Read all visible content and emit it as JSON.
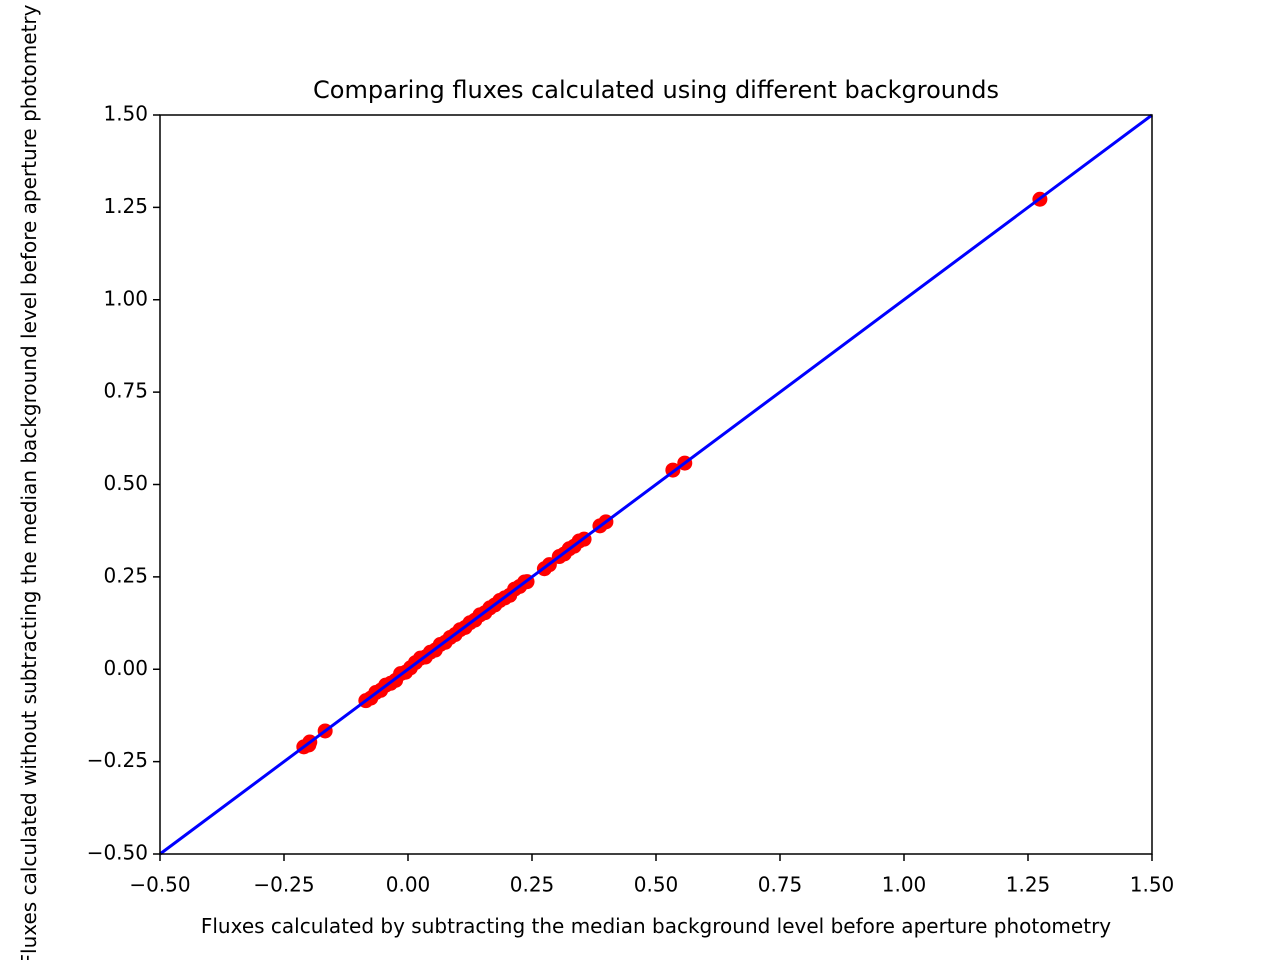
{
  "chart_data": {
    "type": "scatter",
    "title": "Comparing fluxes calculated using different backgrounds",
    "xlabel": "Fluxes calculated by subtracting the median background level before aperture photometry",
    "ylabel": "Fluxes calculated without subtracting the median background level before aperture photometry",
    "xlim": [
      -0.5,
      1.5
    ],
    "ylim": [
      -0.5,
      1.5
    ],
    "xticks": [
      {
        "value": -0.5,
        "label": "−0.50"
      },
      {
        "value": -0.25,
        "label": "−0.25"
      },
      {
        "value": 0,
        "label": "0.00"
      },
      0.25,
      {
        "value": 0.5,
        "label": "0.50"
      },
      0.75,
      {
        "value": 1,
        "label": "1.00"
      },
      1.25,
      {
        "value": 1.5,
        "label": "1.50"
      }
    ],
    "yticks": [
      {
        "value": -0.5,
        "label": "−0.50"
      },
      {
        "value": -0.25,
        "label": "−0.25"
      },
      {
        "value": 0,
        "label": "0.00"
      },
      0.25,
      {
        "value": 0.5,
        "label": "0.50"
      },
      0.75,
      {
        "value": 1,
        "label": "1.00"
      },
      1.25,
      {
        "value": 1.5,
        "label": "1.50"
      }
    ],
    "points": {
      "color": "#ff0000",
      "x": [
        -0.21,
        -0.2,
        -0.198,
        -0.167,
        -0.085,
        -0.075,
        -0.065,
        -0.055,
        -0.045,
        -0.035,
        -0.025,
        -0.015,
        -0.005,
        0.005,
        0.015,
        0.025,
        0.035,
        0.045,
        0.055,
        0.065,
        0.075,
        0.085,
        0.095,
        0.105,
        0.115,
        0.125,
        0.135,
        0.145,
        0.155,
        0.165,
        0.175,
        0.185,
        0.195,
        0.205,
        0.215,
        0.225,
        0.235,
        0.24,
        0.275,
        0.285,
        0.305,
        0.315,
        0.325,
        0.335,
        0.345,
        0.355,
        0.387,
        0.399,
        0.534,
        0.558,
        1.274
      ],
      "y": [
        -0.21,
        -0.205,
        -0.197,
        -0.167,
        -0.085,
        -0.078,
        -0.063,
        -0.057,
        -0.043,
        -0.038,
        -0.03,
        -0.012,
        -0.008,
        0.004,
        0.018,
        0.03,
        0.033,
        0.046,
        0.052,
        0.067,
        0.073,
        0.086,
        0.094,
        0.107,
        0.113,
        0.126,
        0.133,
        0.147,
        0.153,
        0.166,
        0.174,
        0.186,
        0.193,
        0.2,
        0.217,
        0.224,
        0.236,
        0.237,
        0.272,
        0.283,
        0.305,
        0.312,
        0.326,
        0.333,
        0.347,
        0.352,
        0.388,
        0.399,
        0.539,
        0.558,
        1.272
      ]
    },
    "line": {
      "color": "#0000ff",
      "x": [
        -0.5,
        1.5
      ],
      "y": [
        -0.5,
        1.5
      ]
    }
  }
}
